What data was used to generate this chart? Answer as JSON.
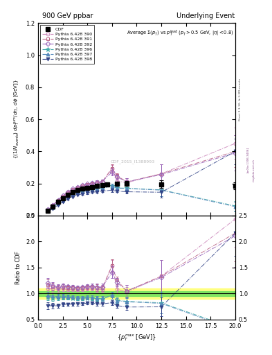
{
  "title_left": "900 GeV ppbar",
  "title_right": "Underlying Event",
  "watermark": "CDF_2015_I1388993",
  "rivet_label": "Rivet 3.1.10, ≥ 3.3M events",
  "arxiv_label": "[arXiv:1306.3436]",
  "mcplots_label": "mcplots.cern.ch",
  "xlim": [
    0,
    20
  ],
  "ylim_main": [
    0,
    1.2
  ],
  "ylim_ratio": [
    0.5,
    2.5
  ],
  "yticks_main": [
    0,
    0.2,
    0.4,
    0.6,
    0.8,
    1.0,
    1.2
  ],
  "yticks_ratio": [
    0.5,
    1.0,
    1.5,
    2.0,
    2.5
  ],
  "cdf_x": [
    1.0,
    1.5,
    2.0,
    2.5,
    3.0,
    3.5,
    4.0,
    4.5,
    5.0,
    5.5,
    6.0,
    6.5,
    7.0,
    8.0,
    9.0,
    12.5,
    20.0
  ],
  "cdf_y": [
    0.03,
    0.055,
    0.085,
    0.108,
    0.13,
    0.148,
    0.16,
    0.168,
    0.172,
    0.178,
    0.185,
    0.19,
    0.192,
    0.198,
    0.2,
    0.195,
    0.185
  ],
  "cdf_yerr": [
    0.004,
    0.005,
    0.005,
    0.006,
    0.006,
    0.006,
    0.006,
    0.006,
    0.007,
    0.007,
    0.008,
    0.008,
    0.01,
    0.01,
    0.015,
    0.025,
    0.02
  ],
  "cdf_band_green": 0.05,
  "cdf_band_yellow": 0.1,
  "py390_x": [
    1.0,
    1.5,
    2.0,
    2.5,
    3.0,
    3.5,
    4.0,
    4.5,
    5.0,
    5.5,
    6.0,
    6.5,
    7.5,
    8.0,
    9.0,
    12.5,
    20.0
  ],
  "py390_y": [
    0.033,
    0.06,
    0.092,
    0.118,
    0.14,
    0.16,
    0.172,
    0.182,
    0.188,
    0.196,
    0.2,
    0.205,
    0.295,
    0.215,
    0.205,
    0.26,
    0.45
  ],
  "py390_yerr": [
    0.003,
    0.004,
    0.004,
    0.005,
    0.005,
    0.005,
    0.005,
    0.006,
    0.007,
    0.007,
    0.01,
    0.01,
    0.02,
    0.015,
    0.02,
    0.06,
    0.1
  ],
  "py391_x": [
    1.0,
    1.5,
    2.0,
    2.5,
    3.0,
    3.5,
    4.0,
    4.5,
    5.0,
    5.5,
    6.0,
    6.5,
    7.5,
    8.0,
    9.0,
    12.5,
    20.0
  ],
  "py391_y": [
    0.035,
    0.062,
    0.095,
    0.122,
    0.145,
    0.164,
    0.176,
    0.186,
    0.193,
    0.2,
    0.206,
    0.21,
    0.295,
    0.248,
    0.21,
    0.26,
    0.4
  ],
  "py391_yerr": [
    0.003,
    0.004,
    0.004,
    0.005,
    0.005,
    0.006,
    0.006,
    0.006,
    0.007,
    0.008,
    0.012,
    0.012,
    0.022,
    0.015,
    0.022,
    0.06,
    0.1
  ],
  "py392_x": [
    1.0,
    1.5,
    2.0,
    2.5,
    3.0,
    3.5,
    4.0,
    4.5,
    5.0,
    5.5,
    6.0,
    6.5,
    7.5,
    8.0,
    9.0,
    12.5,
    20.0
  ],
  "py392_y": [
    0.036,
    0.063,
    0.096,
    0.124,
    0.147,
    0.166,
    0.178,
    0.188,
    0.196,
    0.203,
    0.208,
    0.213,
    0.27,
    0.24,
    0.21,
    0.255,
    0.39
  ],
  "py392_yerr": [
    0.003,
    0.004,
    0.004,
    0.005,
    0.005,
    0.006,
    0.006,
    0.006,
    0.007,
    0.008,
    0.012,
    0.012,
    0.022,
    0.016,
    0.022,
    0.065,
    0.11
  ],
  "py396_x": [
    1.0,
    1.5,
    2.0,
    2.5,
    3.0,
    3.5,
    4.0,
    4.5,
    5.0,
    5.5,
    6.0,
    6.5,
    7.5,
    8.0,
    9.0,
    12.5,
    20.0
  ],
  "py396_y": [
    0.028,
    0.05,
    0.078,
    0.1,
    0.12,
    0.135,
    0.145,
    0.152,
    0.157,
    0.162,
    0.166,
    0.17,
    0.185,
    0.172,
    0.17,
    0.16,
    0.06
  ],
  "py396_yerr": [
    0.002,
    0.003,
    0.004,
    0.004,
    0.005,
    0.005,
    0.005,
    0.005,
    0.006,
    0.006,
    0.008,
    0.008,
    0.012,
    0.01,
    0.015,
    0.04,
    0.03
  ],
  "py397_x": [
    1.0,
    1.5,
    2.0,
    2.5,
    3.0,
    3.5,
    4.0,
    4.5,
    5.0,
    5.5,
    6.0,
    6.5,
    7.5,
    8.0,
    9.0,
    12.5,
    20.0
  ],
  "py397_y": [
    0.029,
    0.052,
    0.08,
    0.103,
    0.122,
    0.138,
    0.148,
    0.155,
    0.16,
    0.165,
    0.169,
    0.172,
    0.185,
    0.17,
    0.168,
    0.158,
    0.055
  ],
  "py397_yerr": [
    0.002,
    0.003,
    0.004,
    0.004,
    0.005,
    0.005,
    0.005,
    0.005,
    0.006,
    0.006,
    0.008,
    0.008,
    0.012,
    0.01,
    0.015,
    0.038,
    0.028
  ],
  "py398_x": [
    1.0,
    1.5,
    2.0,
    2.5,
    3.0,
    3.5,
    4.0,
    4.5,
    5.0,
    5.5,
    6.0,
    6.5,
    7.5,
    8.0,
    9.0,
    12.5,
    20.0
  ],
  "py398_y": [
    0.023,
    0.042,
    0.065,
    0.085,
    0.103,
    0.118,
    0.128,
    0.135,
    0.14,
    0.145,
    0.148,
    0.152,
    0.158,
    0.152,
    0.148,
    0.145,
    0.4
  ],
  "py398_yerr": [
    0.002,
    0.003,
    0.003,
    0.004,
    0.004,
    0.004,
    0.005,
    0.005,
    0.005,
    0.005,
    0.007,
    0.007,
    0.01,
    0.008,
    0.012,
    0.035,
    0.08
  ],
  "color_390": "#cc88bb",
  "color_391": "#bb6688",
  "color_392": "#9966bb",
  "color_396": "#44aaaa",
  "color_397": "#5588bb",
  "color_398": "#334488",
  "open_markers": [
    "390",
    "391",
    "392"
  ],
  "filled_markers": [
    "396",
    "397",
    "398"
  ]
}
